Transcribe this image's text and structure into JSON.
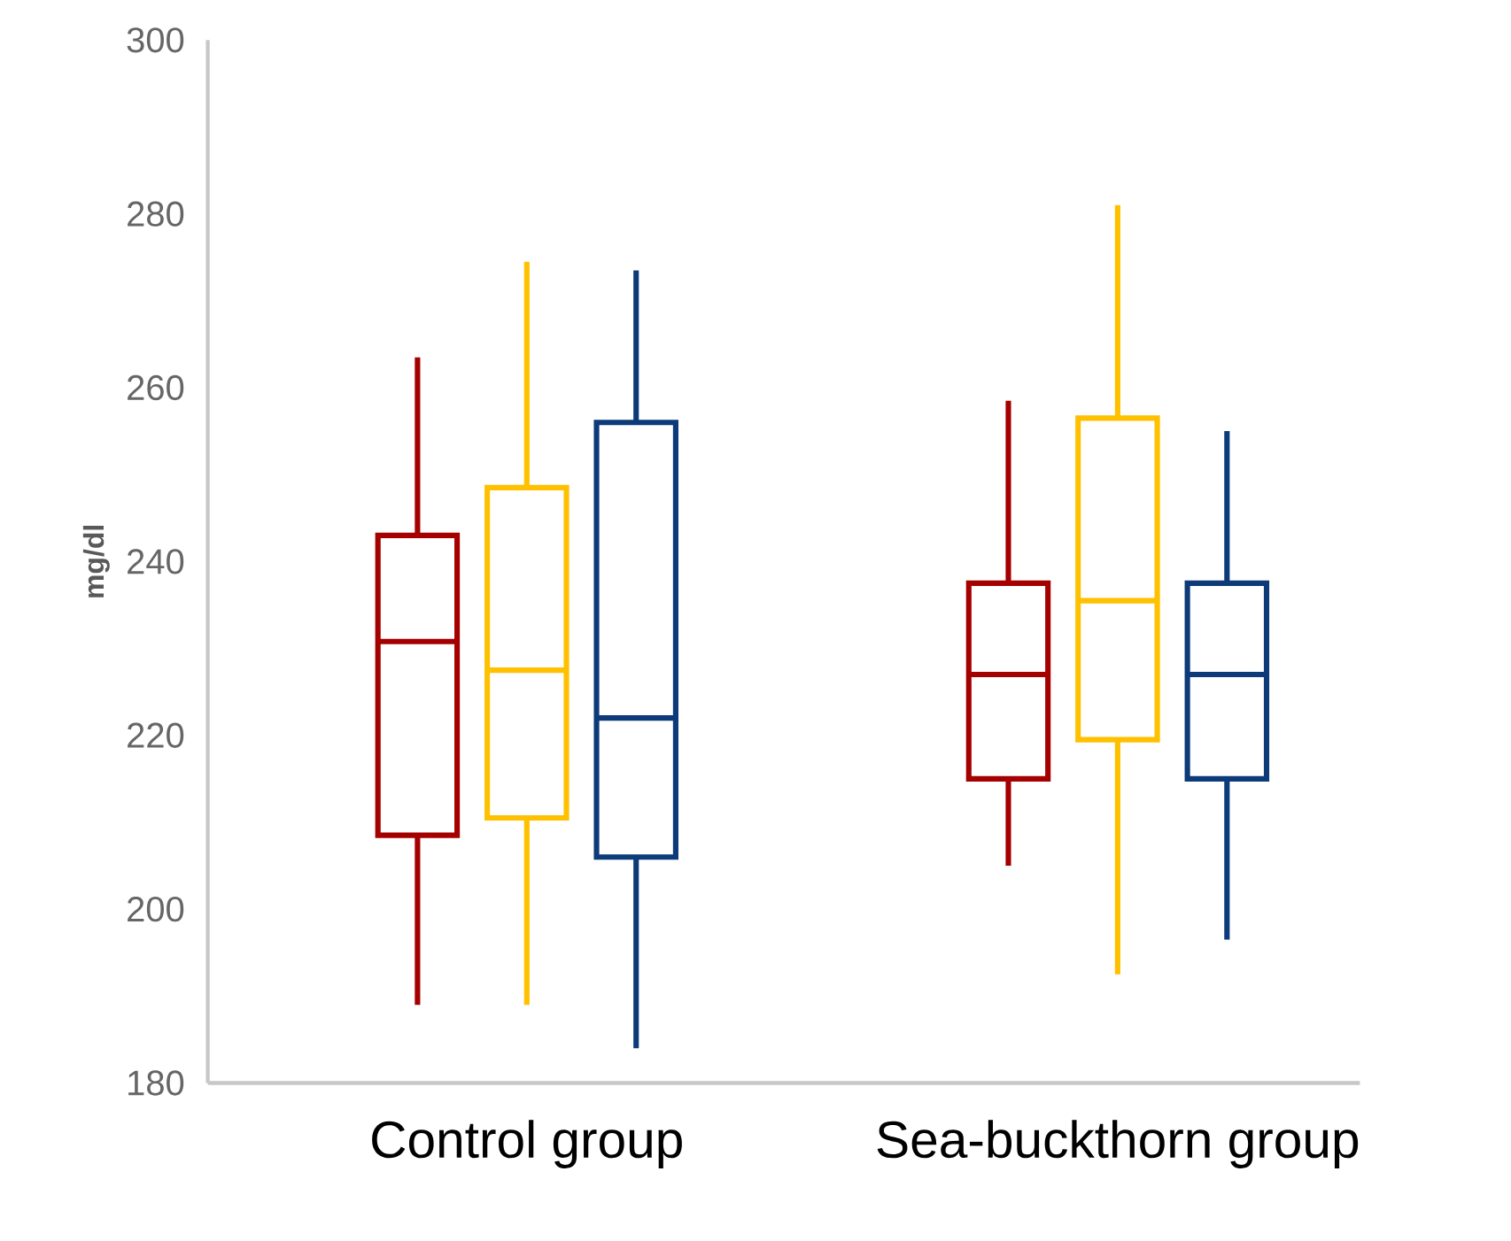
{
  "chart_data": {
    "type": "box",
    "ylabel": "mg/dl",
    "categories": [
      "Control group",
      "Sea-buckthorn group"
    ],
    "ylim": [
      180,
      300
    ],
    "yticks": [
      180,
      200,
      220,
      240,
      260,
      280,
      300
    ],
    "series": [
      {
        "color": "#a50000",
        "boxes": [
          {
            "low": 189,
            "q1": 208.5,
            "median": 230.8,
            "q3": 243,
            "high": 263.5
          },
          {
            "low": 205,
            "q1": 215,
            "median": 227,
            "q3": 237.5,
            "high": 258.5
          }
        ]
      },
      {
        "color": "#ffc000",
        "boxes": [
          {
            "low": 189,
            "q1": 210.5,
            "median": 227.5,
            "q3": 248.5,
            "high": 274.5
          },
          {
            "low": 192.5,
            "q1": 219.5,
            "median": 235.5,
            "q3": 256.5,
            "high": 281
          }
        ]
      },
      {
        "color": "#0d3b7a",
        "boxes": [
          {
            "low": 184,
            "q1": 206,
            "median": 222,
            "q3": 256,
            "high": 273.5
          },
          {
            "low": 196.5,
            "q1": 215,
            "median": 227,
            "q3": 237.5,
            "high": 255
          }
        ]
      }
    ]
  }
}
